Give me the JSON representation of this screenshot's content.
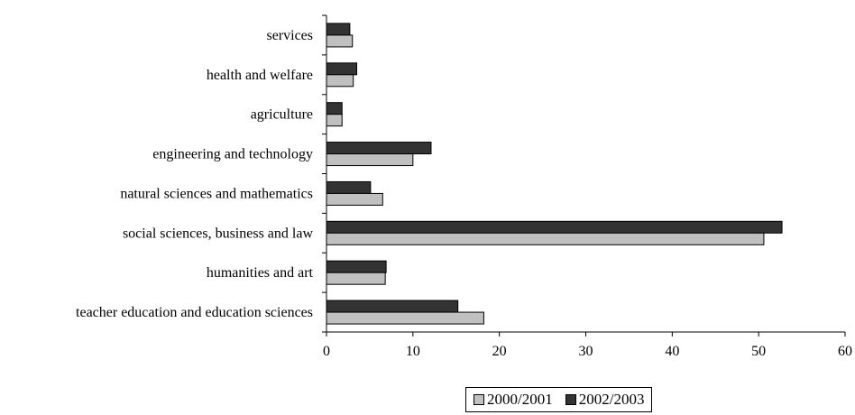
{
  "chart_data": {
    "type": "bar",
    "orientation": "horizontal",
    "title": "",
    "xlabel": "",
    "ylabel": "",
    "categories": [
      "teacher education and education sciences",
      "humanities and art",
      "social sciences, business and law",
      "natural sciences and mathematics",
      "engineering and technology",
      "agriculture",
      "health and welfare",
      "services"
    ],
    "series": [
      {
        "name": "2000/2001",
        "color": "#c0c0c0",
        "values": [
          18.2,
          6.8,
          50.6,
          6.5,
          10.0,
          1.8,
          3.1,
          3.0
        ]
      },
      {
        "name": "2002/2003",
        "color": "#333333",
        "values": [
          15.2,
          6.9,
          52.7,
          5.1,
          12.1,
          1.8,
          3.5,
          2.7
        ]
      }
    ],
    "xlim": [
      0,
      60
    ],
    "xticks": [
      "0",
      "10",
      "20",
      "30",
      "40",
      "50",
      "60"
    ],
    "grid": false,
    "legend_position": "bottom"
  }
}
